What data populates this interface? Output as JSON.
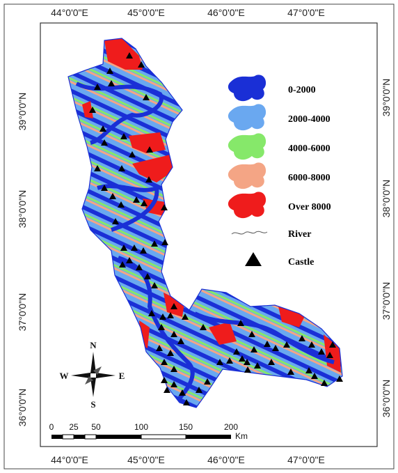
{
  "map": {
    "top_axis": [
      "44°0'0\"E",
      "45°0'0\"E",
      "46°0'0\"E",
      "47°0'0\"E"
    ],
    "bottom_axis": [
      "44°0'0\"E",
      "45°0'0\"E",
      "46°0'0\"E",
      "47°0'0\"E"
    ],
    "left_axis": [
      "39°0'0\"N",
      "38°0'0\"N",
      "37°0'0\"N",
      "36°0'0\"N"
    ],
    "right_axis": [
      "39°0'0\"N",
      "38°0'0\"N",
      "37°0'0\"N",
      "36°0'0\"N"
    ]
  },
  "legend": {
    "items": [
      {
        "label": "0-2000",
        "color": "#1a2fd6"
      },
      {
        "label": "2000-4000",
        "color": "#6aa8f0"
      },
      {
        "label": "4000-6000",
        "color": "#86e86a"
      },
      {
        "label": "6000-8000",
        "color": "#f4a585"
      },
      {
        "label": "Over 8000",
        "color": "#ef1c1c"
      }
    ],
    "river_label": "River",
    "castle_label": "Castle"
  },
  "compass": {
    "n": "N",
    "s": "S",
    "e": "E",
    "w": "W"
  },
  "scale_bar": {
    "ticks": [
      "0",
      "25",
      "50",
      "100",
      "150",
      "200"
    ],
    "unit": "Km"
  }
}
